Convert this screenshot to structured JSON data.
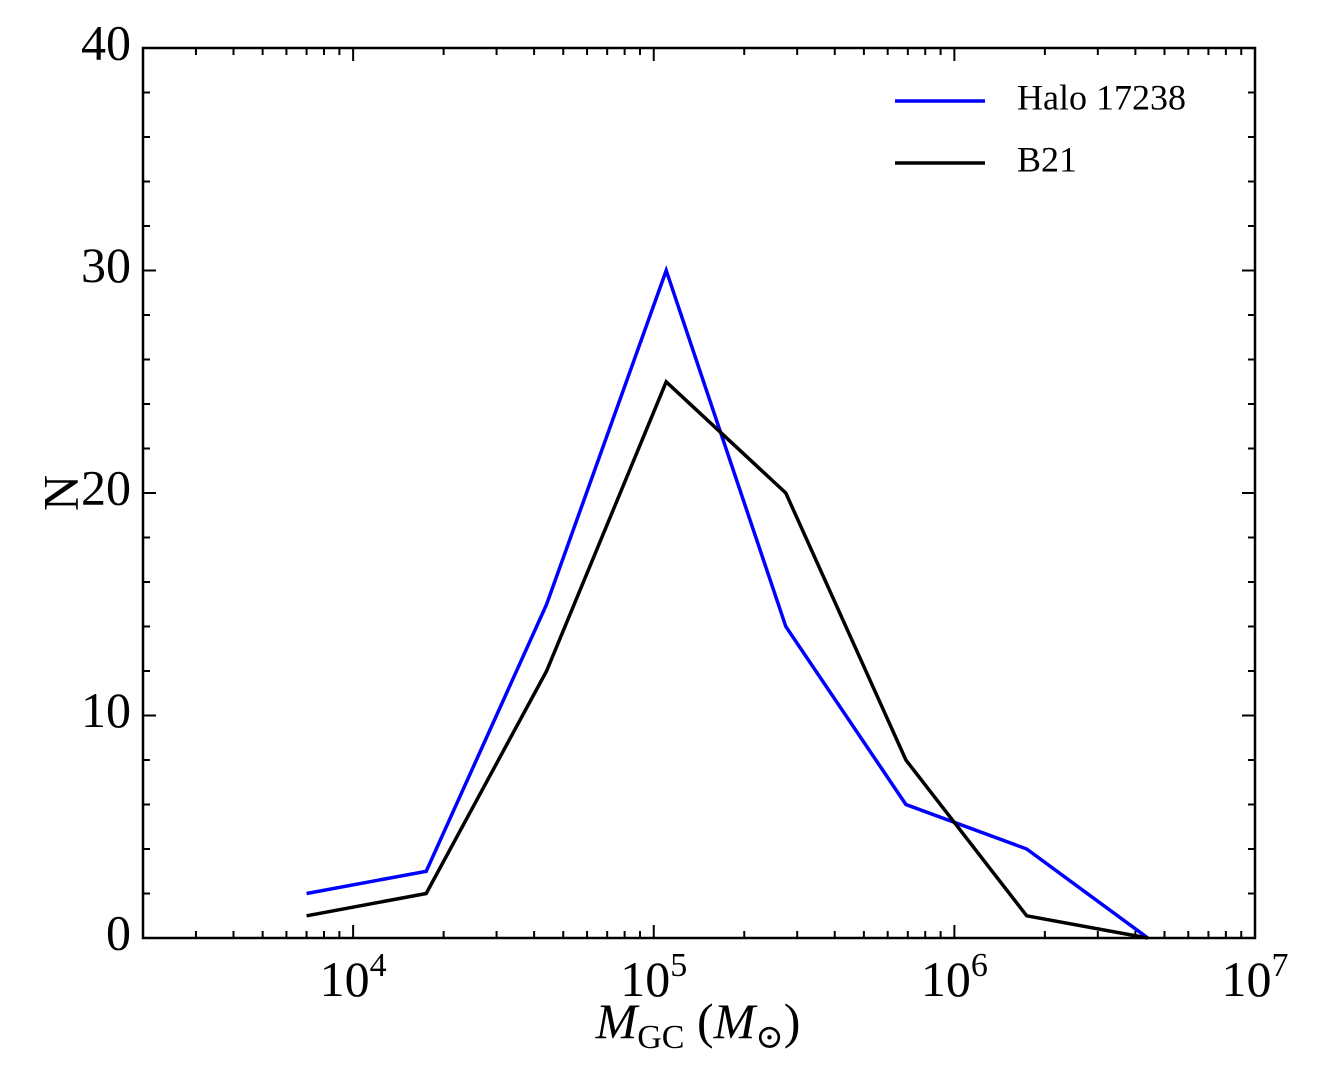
{
  "chart_data": {
    "type": "line",
    "title": "",
    "xlabel": {
      "main": "M",
      "sub": "GC",
      "paren_open": " (",
      "sym": "M",
      "sun": "⊙",
      "paren_close": ")"
    },
    "ylabel": "N",
    "xscale": "log",
    "xlim": [
      2000,
      10000000
    ],
    "ylim": [
      0,
      40
    ],
    "x_ticks": [
      {
        "base": "10",
        "exp": "4",
        "value": 10000
      },
      {
        "base": "10",
        "exp": "5",
        "value": 100000
      },
      {
        "base": "10",
        "exp": "6",
        "value": 1000000
      },
      {
        "base": "10",
        "exp": "7",
        "value": 10000000
      }
    ],
    "y_ticks": [
      {
        "label": "0",
        "value": 0
      },
      {
        "label": "10",
        "value": 10
      },
      {
        "label": "20",
        "value": 20
      },
      {
        "label": "30",
        "value": 30
      },
      {
        "label": "40",
        "value": 40
      }
    ],
    "y_minor_step": 2,
    "x": [
      7000,
      17500,
      44000,
      110000,
      275000,
      690000,
      1740000,
      4400000
    ],
    "series": [
      {
        "name": "Halo 17238",
        "color": "#0000ff",
        "values": [
          2,
          3,
          15,
          30,
          14,
          6,
          4,
          0
        ]
      },
      {
        "name": "B21",
        "color": "#000000",
        "values": [
          1,
          2,
          12,
          25,
          20,
          8,
          1,
          0
        ]
      }
    ],
    "legend_position": "top-right",
    "grid": false
  }
}
